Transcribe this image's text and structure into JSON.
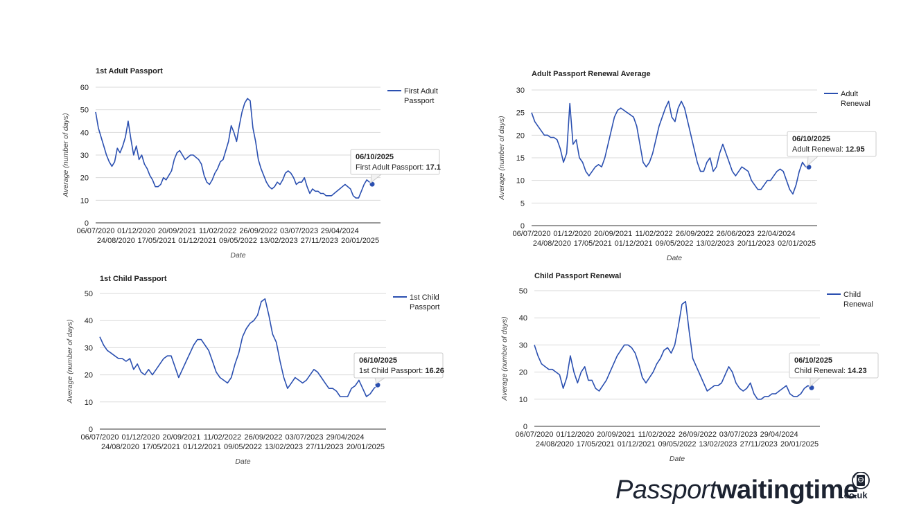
{
  "charts": [
    {
      "id": "first-adult",
      "chart_data": {
        "type": "line",
        "title": "1st Adult Passport",
        "xlabel": "Date",
        "ylabel": "Average (number of days)",
        "ylim": [
          0,
          60
        ],
        "yticks": [
          "0",
          "10",
          "20",
          "30",
          "40",
          "50",
          "60"
        ],
        "xticks_top": [
          "06/07/2020",
          "01/12/2020",
          "20/09/2021",
          "11/02/2022",
          "26/09/2022",
          "03/07/2023",
          "29/04/2024"
        ],
        "xticks_bottom": [
          "24/08/2020",
          "17/05/2021",
          "01/12/2021",
          "09/05/2022",
          "13/02/2023",
          "27/11/2023",
          "20/01/2025"
        ],
        "legend": "First Adult Passport",
        "legend_lines": [
          "First Adult",
          "Passport"
        ],
        "legend_position": "right",
        "series": [
          {
            "name": "First Adult Passport",
            "values": [
              49,
              42,
              38,
              34,
              30,
              27,
              25,
              27,
              33,
              31,
              34,
              38,
              45,
              37,
              30,
              34,
              28,
              30,
              26,
              24,
              21,
              19,
              16,
              16,
              17,
              20,
              19,
              21,
              23,
              28,
              31,
              32,
              30,
              28,
              29,
              30,
              30,
              29,
              28,
              26,
              21,
              18,
              17,
              19,
              22,
              24,
              27,
              28,
              32,
              36,
              43,
              40,
              36,
              43,
              49,
              53,
              55,
              54,
              42,
              36,
              28,
              24,
              21,
              18,
              16,
              15,
              16,
              18,
              17,
              19,
              22,
              23,
              22,
              20,
              17,
              18,
              18,
              20,
              16,
              13,
              15,
              14,
              14,
              13,
              13,
              12,
              12,
              12,
              13,
              14,
              15,
              16,
              17,
              16,
              15,
              12,
              11,
              11,
              14,
              17,
              19,
              18,
              17.1
            ]
          }
        ],
        "tooltip": {
          "date": "06/10/2025",
          "label": "First Adult Passport:",
          "value": "17.1"
        }
      }
    },
    {
      "id": "adult-renewal",
      "chart_data": {
        "type": "line",
        "title": "Adult Passport Renewal Average",
        "xlabel": "Date",
        "ylabel": "Average (number of days)",
        "ylim": [
          0,
          30
        ],
        "yticks": [
          "0",
          "5",
          "10",
          "15",
          "20",
          "25",
          "30"
        ],
        "xticks_top": [
          "06/07/2020",
          "01/12/2020",
          "20/09/2021",
          "11/02/2022",
          "26/09/2022",
          "26/06/2023",
          "22/04/2024"
        ],
        "xticks_bottom": [
          "24/08/2020",
          "17/05/2021",
          "01/12/2021",
          "09/05/2022",
          "13/02/2023",
          "20/11/2023",
          "02/01/2025"
        ],
        "legend": "Adult Renewal",
        "legend_lines": [
          "Adult",
          "Renewal"
        ],
        "legend_position": "right",
        "series": [
          {
            "name": "Adult Renewal",
            "values": [
              25,
              23,
              22,
              21,
              20,
              20,
              19.5,
              19.5,
              19,
              17,
              14,
              16,
              27,
              18,
              19,
              15,
              14,
              12,
              11,
              12,
              13,
              13.5,
              13,
              15,
              18,
              21,
              24,
              25.5,
              26,
              25.5,
              25,
              24.5,
              24,
              22,
              18,
              14,
              13,
              14,
              16,
              19,
              22,
              24,
              26,
              27.5,
              24,
              23,
              26,
              27.5,
              26,
              23,
              20,
              17,
              14,
              12,
              12,
              14,
              15,
              12,
              13,
              16,
              18,
              16,
              14,
              12,
              11,
              12,
              13,
              12.5,
              12,
              10,
              9,
              8,
              8,
              9,
              10,
              10,
              11,
              12,
              12.5,
              12,
              10,
              8,
              7,
              9,
              12,
              14,
              13,
              12.95
            ]
          }
        ],
        "tooltip": {
          "date": "06/10/2025",
          "label": "Adult Renewal:",
          "value": "12.95"
        }
      }
    },
    {
      "id": "first-child",
      "chart_data": {
        "type": "line",
        "title": "1st Child Passport",
        "xlabel": "Date",
        "ylabel": "Average (number of days)",
        "ylim": [
          0,
          50
        ],
        "yticks": [
          "0",
          "10",
          "20",
          "30",
          "40",
          "50"
        ],
        "xticks_top": [
          "06/07/2020",
          "01/12/2020",
          "20/09/2021",
          "11/02/2022",
          "26/09/2022",
          "03/07/2023",
          "29/04/2024"
        ],
        "xticks_bottom": [
          "24/08/2020",
          "17/05/2021",
          "01/12/2021",
          "09/05/2022",
          "13/02/2023",
          "27/11/2023",
          "20/01/2025"
        ],
        "legend": "1st Child Passport",
        "legend_lines": [
          "1st Child",
          "Passport"
        ],
        "legend_position": "right",
        "series": [
          {
            "name": "1st Child Passport",
            "values": [
              34,
              31,
              29,
              28,
              27,
              26,
              26,
              25,
              26,
              22,
              24,
              21,
              20,
              22,
              20,
              22,
              24,
              26,
              27,
              27,
              23,
              19,
              22,
              25,
              28,
              31,
              33,
              33,
              31,
              29,
              25,
              21,
              19,
              18,
              17,
              19,
              24,
              28,
              34,
              37,
              39,
              40,
              42,
              47,
              48,
              42,
              35,
              32,
              25,
              19,
              15,
              17,
              19,
              18,
              17,
              18,
              20,
              22,
              21,
              19,
              17,
              15,
              15,
              14,
              12,
              12,
              12,
              15,
              16,
              18,
              15,
              12,
              13,
              15,
              16.26
            ]
          }
        ],
        "tooltip": {
          "date": "06/10/2025",
          "label": "1st Child Passport:",
          "value": "16.26"
        }
      }
    },
    {
      "id": "child-renewal",
      "chart_data": {
        "type": "line",
        "title": "Child Passport Renewal",
        "xlabel": "Date",
        "ylabel": "Average (number of days)",
        "ylim": [
          0,
          50
        ],
        "yticks": [
          "0",
          "10",
          "20",
          "30",
          "40",
          "50"
        ],
        "xticks_top": [
          "06/07/2020",
          "01/12/2020",
          "20/09/2021",
          "11/02/2022",
          "26/09/2022",
          "03/07/2023",
          "29/04/2024"
        ],
        "xticks_bottom": [
          "24/08/2020",
          "17/05/2021",
          "01/12/2021",
          "09/05/2022",
          "13/02/2023",
          "27/11/2023",
          "20/01/2025"
        ],
        "legend": "Child Renewal",
        "legend_lines": [
          "Child",
          "Renewal"
        ],
        "legend_position": "right",
        "series": [
          {
            "name": "Child Renewal",
            "values": [
              30,
              26,
              23,
              22,
              21,
              21,
              20,
              19,
              14,
              18,
              26,
              20,
              16,
              20,
              22,
              17,
              17,
              14,
              13,
              15,
              17,
              20,
              23,
              26,
              28,
              30,
              30,
              29,
              27,
              23,
              18,
              16,
              18,
              20,
              23,
              25,
              28,
              29,
              27,
              30,
              37,
              45,
              46,
              35,
              25,
              22,
              19,
              16,
              13,
              14,
              15,
              15,
              16,
              19,
              22,
              20,
              16,
              14,
              13,
              14,
              16,
              12,
              10,
              10,
              11,
              11,
              12,
              12,
              13,
              14,
              15,
              12,
              11,
              11,
              12,
              14,
              15,
              14.23
            ]
          }
        ],
        "tooltip": {
          "date": "06/10/2025",
          "label": "Child Renewal:",
          "value": "14.23"
        }
      }
    }
  ],
  "logo": {
    "part1": "Passport",
    "part2": "waitingtime",
    "part3": ".co.uk",
    "icon": "passport-globe-icon"
  },
  "colors": {
    "line": "#2a4fb0",
    "grid": "#d9d9d9",
    "axis": "#333333",
    "tip_border": "#cccccc"
  }
}
